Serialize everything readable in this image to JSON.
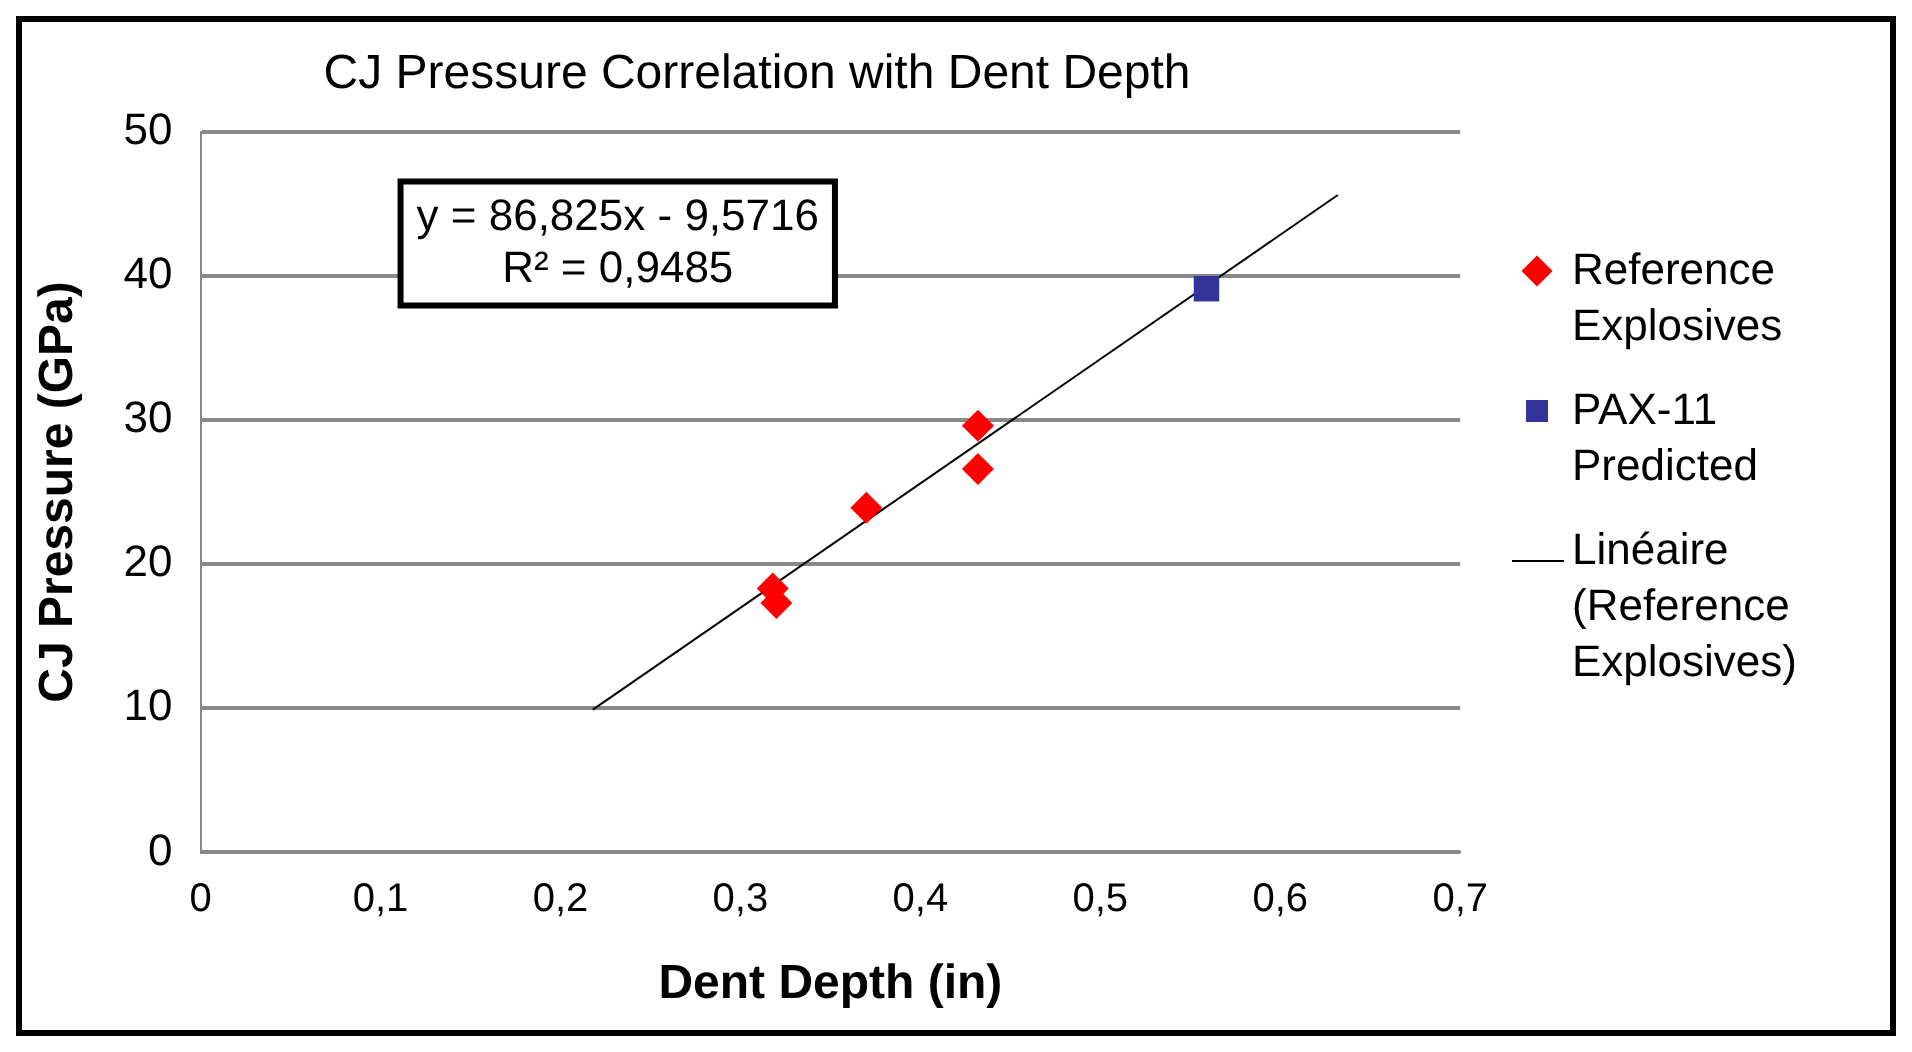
{
  "chart_data": {
    "type": "scatter",
    "title": "CJ Pressure Correlation with Dent Depth",
    "xlabel": "Dent Depth (in)",
    "ylabel": "CJ Pressure (GPa)",
    "xlim": [
      0,
      0.7
    ],
    "xticks": [
      {
        "value": 0,
        "label": "0"
      },
      {
        "value": 0.1,
        "label": "0,1"
      },
      {
        "value": 0.2,
        "label": "0,2"
      },
      {
        "value": 0.3,
        "label": "0,3"
      },
      {
        "value": 0.4,
        "label": "0,4"
      },
      {
        "value": 0.5,
        "label": "0,5"
      },
      {
        "value": 0.6,
        "label": "0,6"
      },
      {
        "value": 0.7,
        "label": "0,7"
      }
    ],
    "ylim": [
      0,
      50
    ],
    "yticks": [
      0,
      10,
      20,
      30,
      40,
      50
    ],
    "grid": "y",
    "legend": "right",
    "annotations": [
      "y = 86,825x - 9,5716",
      "R² = 0,9485"
    ],
    "series": [
      {
        "name": "Reference Explosives",
        "type": "scatter",
        "marker": "diamond",
        "color": "#ff0000",
        "x": [
          0.318,
          0.32,
          0.37,
          0.432,
          0.432
        ],
        "values": [
          18.3,
          17.3,
          23.9,
          29.6,
          26.6
        ]
      },
      {
        "name": "PAX-11 Predicted",
        "type": "scatter",
        "marker": "square",
        "color": "#333399",
        "x": [
          0.559
        ],
        "values": [
          39.1
        ]
      },
      {
        "name": "Linéaire (Reference Explosives)",
        "type": "line",
        "marker": "none",
        "line_style": "solid",
        "color": "#000000",
        "x": [
          0.218,
          0.632
        ],
        "values": [
          9.9,
          45.6
        ]
      }
    ]
  }
}
